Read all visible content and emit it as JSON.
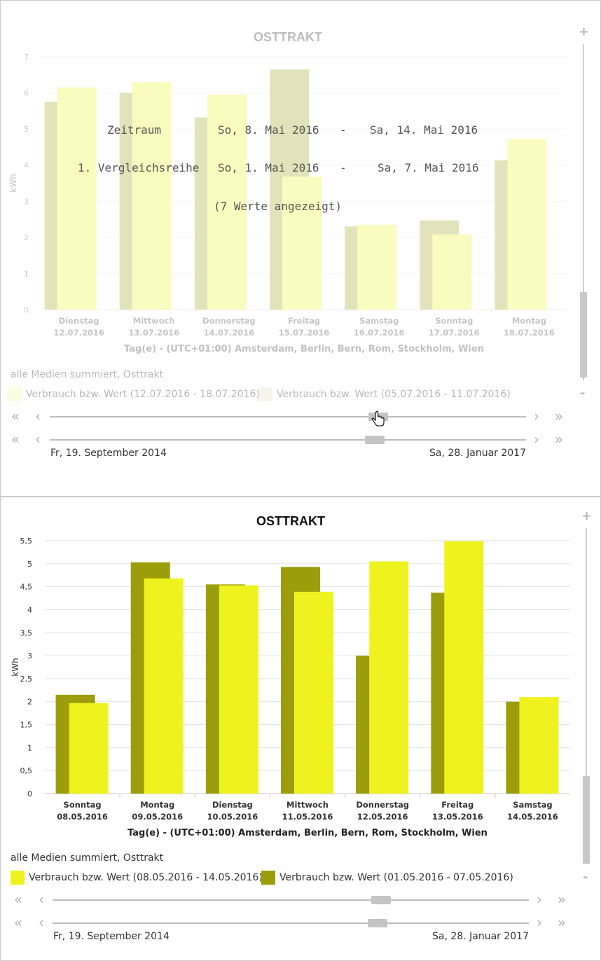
{
  "top_panel": {
    "legend_title": "alle Medien summiert, Osttrakt",
    "legend": [
      {
        "label": "Verbrauch bzw. Wert (12.07.2016 - 18.07.2016)",
        "color": "#f7f7a8"
      },
      {
        "label": "Verbrauch bzw. Wert (05.07.2016 - 11.07.2016)",
        "color": "#e3e2c4"
      }
    ],
    "nav": {
      "start_date": "Fr, 19. September 2014",
      "end_date": "Sa, 28. Januar 2017",
      "back_fast": "«",
      "back": "‹",
      "fwd": "›",
      "fwd_fast": "»"
    },
    "vscroll": {
      "plus": "+",
      "minus": "-"
    },
    "overlay": {
      "zeitraum_label": "Zeitraum",
      "zeitraum_from": "So, 8. Mai 2016",
      "zeitraum_sep": "-",
      "zeitraum_to": "Sa, 14. Mai 2016",
      "vergleich_label": "1. Vergleichsreihe",
      "vergleich_from": "So, 1. Mai 2016",
      "vergleich_sep": "-",
      "vergleich_to": "Sa, 7. Mai 2016",
      "count": "(7 Werte angezeigt)"
    }
  },
  "bottom_panel": {
    "legend_title": "alle Medien summiert, Osttrakt",
    "legend": [
      {
        "label": "Verbrauch bzw. Wert (08.05.2016 - 14.05.2016)",
        "color": "#eef21e"
      },
      {
        "label": "Verbrauch bzw. Wert (01.05.2016 - 07.05.2016)",
        "color": "#9b9d0a"
      }
    ],
    "nav": {
      "start_date": "Fr, 19. September 2014",
      "end_date": "Sa, 28. Januar 2017",
      "back_fast": "«",
      "back": "‹",
      "fwd": "›",
      "fwd_fast": "»"
    },
    "vscroll": {
      "plus": "+",
      "minus": "-"
    }
  },
  "chart_data": [
    {
      "type": "bar",
      "title": "OSTTRAKT",
      "xlabel": "Tag(e) - (UTC+01:00) Amsterdam, Berlin, Bern, Rom, Stockholm, Wien",
      "ylabel": "kWh",
      "ylim": [
        0,
        7
      ],
      "yticks": [
        "0",
        "1",
        "2",
        "3",
        "4",
        "5",
        "6",
        "7"
      ],
      "categories": [
        [
          "Dienstag",
          "12.07.2016"
        ],
        [
          "Mittwoch",
          "13.07.2016"
        ],
        [
          "Donnerstag",
          "14.07.2016"
        ],
        [
          "Freitag",
          "15.07.2016"
        ],
        [
          "Samstag",
          "16.07.2016"
        ],
        [
          "Sonntag",
          "17.07.2016"
        ],
        [
          "Montag",
          "18.07.2016"
        ]
      ],
      "series": [
        {
          "name": "Verbrauch bzw. Wert (05.07.2016 - 11.07.2016)",
          "color": "#9b9d0a",
          "values": [
            5.75,
            6.0,
            5.32,
            6.65,
            2.3,
            2.47,
            4.13
          ]
        },
        {
          "name": "Verbrauch bzw. Wert (12.07.2016 - 18.07.2016)",
          "color": "#eef21e",
          "values": [
            6.15,
            6.3,
            5.95,
            3.68,
            2.35,
            2.08,
            4.72
          ]
        }
      ],
      "grid": true,
      "legend": "bottom-left"
    },
    {
      "type": "bar",
      "title": "OSTTRAKT",
      "xlabel": "Tag(e) - (UTC+01:00) Amsterdam, Berlin, Bern, Rom, Stockholm, Wien",
      "ylabel": "kWh",
      "ylim": [
        0,
        5.5
      ],
      "yticks": [
        "0",
        "0,5",
        "1",
        "1,5",
        "2",
        "2,5",
        "3",
        "3,5",
        "4",
        "4,5",
        "5",
        "5,5"
      ],
      "categories": [
        [
          "Sonntag",
          "08.05.2016"
        ],
        [
          "Montag",
          "09.05.2016"
        ],
        [
          "Dienstag",
          "10.05.2016"
        ],
        [
          "Mittwoch",
          "11.05.2016"
        ],
        [
          "Donnerstag",
          "12.05.2016"
        ],
        [
          "Freitag",
          "13.05.2016"
        ],
        [
          "Samstag",
          "14.05.2016"
        ]
      ],
      "series": [
        {
          "name": "Verbrauch bzw. Wert (01.05.2016 - 07.05.2016)",
          "color": "#9b9d0a",
          "values": [
            2.15,
            5.03,
            4.55,
            4.93,
            3.0,
            4.37,
            2.0
          ]
        },
        {
          "name": "Verbrauch bzw. Wert (08.05.2016 - 14.05.2016)",
          "color": "#eef21e",
          "values": [
            1.97,
            4.68,
            4.53,
            4.39,
            5.05,
            5.49,
            2.1
          ]
        }
      ],
      "grid": true,
      "legend": "bottom-left"
    }
  ]
}
